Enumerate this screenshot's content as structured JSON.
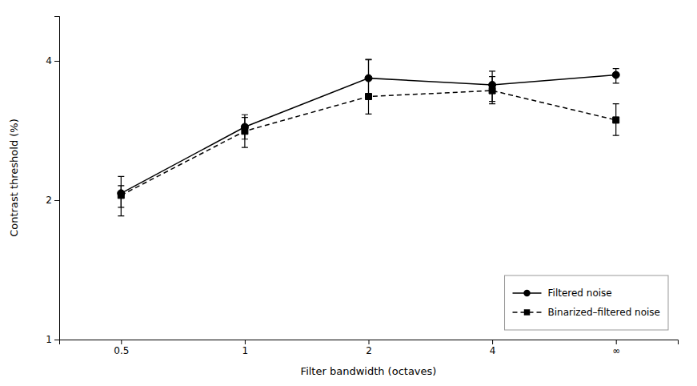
{
  "chart_data": {
    "type": "line",
    "x_label": "Filter bandwidth (octaves)",
    "y_label": "Contrast threshold (%)",
    "categories": [
      "0.5",
      "1",
      "2",
      "4",
      "∞"
    ],
    "series": [
      {
        "name": "Filtered noise",
        "color": "#000000",
        "marker": "circle",
        "line_style": "solid",
        "values": [
          2.07,
          2.88,
          3.67,
          3.55,
          3.73
        ],
        "error_minus": [
          0.22,
          0.17,
          0.3,
          0.28,
          0.15
        ],
        "error_plus": [
          0.18,
          0.18,
          0.35,
          0.25,
          0.12
        ]
      },
      {
        "name": "Binarized–filtered noise",
        "color": "#000000",
        "marker": "square",
        "line_style": "dashed",
        "values": [
          2.05,
          2.82,
          3.35,
          3.45,
          2.98
        ],
        "error_minus": [
          0.12,
          0.22,
          0.28,
          0.22,
          0.22
        ],
        "error_plus": [
          0.1,
          0.2,
          0.68,
          0.25,
          0.25
        ]
      }
    ],
    "log": "y",
    "ylim": [
      1.0,
      5.0
    ],
    "yticks": [
      1,
      2,
      4
    ],
    "grid": false,
    "legend": "lower right"
  }
}
